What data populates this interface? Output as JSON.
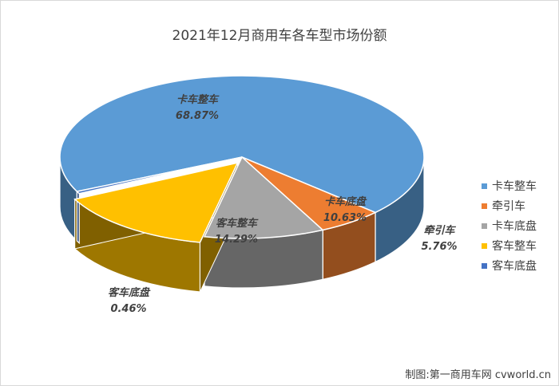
{
  "chart_data": {
    "type": "pie",
    "title": "2021年12月商用车各车型市场份额",
    "slices": [
      {
        "name": "卡车整车",
        "value": 68.87,
        "label": "68.87%",
        "color": "#5b9bd5"
      },
      {
        "name": "牵引车",
        "value": 5.76,
        "label": "5.76%",
        "color": "#ed7d31"
      },
      {
        "name": "卡车底盘",
        "value": 10.63,
        "label": "10.63%",
        "color": "#a5a5a5"
      },
      {
        "name": "客车整车",
        "value": 14.29,
        "label": "14.29%",
        "color": "#ffc000"
      },
      {
        "name": "客车底盘",
        "value": 0.46,
        "label": "0.46%",
        "color": "#4472c4"
      }
    ],
    "legend_position": "right",
    "style": "3d-pie"
  },
  "footer": {
    "credit": "制图:第一商用车网 cvworld.cn"
  }
}
